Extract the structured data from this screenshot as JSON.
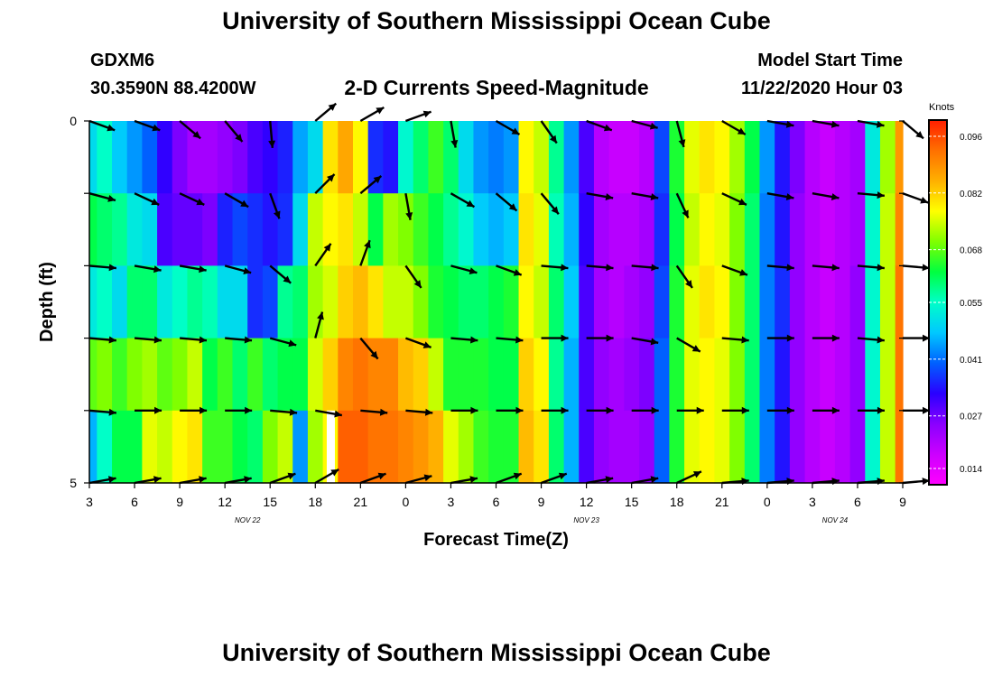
{
  "header": {
    "title": "University of Southern Mississippi Ocean Cube",
    "station_id": "GDXM6",
    "coordinates": "30.3590N 88.4200W",
    "subtitle": "2-D Currents Speed-Magnitude",
    "start_label": "Model Start Time",
    "start_value": "11/22/2020 Hour 03"
  },
  "footer": {
    "title": "University of Southern Mississippi Ocean Cube"
  },
  "colors": {
    "colormap": [
      "#ff00ff",
      "#cc00ff",
      "#8a00ff",
      "#2a00ff",
      "#0060ff",
      "#00c8ff",
      "#00ffc8",
      "#00ff40",
      "#80ff00",
      "#ffff00",
      "#ffb000",
      "#ff7000",
      "#ff1e00"
    ],
    "arrow": "#000000",
    "missing": "#ffffff"
  },
  "chart_data": {
    "type": "heatmap",
    "title": "2-D Currents Speed-Magnitude",
    "xlabel": "Forecast Time(Z)",
    "ylabel": "Depth (ft)",
    "x_tick_labels": [
      "3",
      "6",
      "9",
      "12",
      "15",
      "18",
      "21",
      "0",
      "3",
      "6",
      "9",
      "12",
      "15",
      "18",
      "21",
      "0",
      "3",
      "6",
      "9"
    ],
    "x_range_hours": [
      0,
      54
    ],
    "date_labels": [
      {
        "text": "NOV  22",
        "hour": 10.5
      },
      {
        "text": "NOV  23",
        "hour": 33
      },
      {
        "text": "NOV  24",
        "hour": 49.5
      }
    ],
    "y_tick_labels": [
      "0",
      "5"
    ],
    "ylim": [
      0,
      5
    ],
    "depth_levels": 5,
    "colorbar": {
      "title": "Knots",
      "min": 0.01,
      "max": 0.1,
      "tick_labels": [
        "0.096",
        "0.082",
        "0.068",
        "0.055",
        "0.041",
        "0.027",
        "0.014"
      ]
    },
    "speed_by_hour_depth": [
      [
        0.05,
        0.062,
        0.052,
        0.068,
        0.046
      ],
      [
        0.055,
        0.06,
        0.055,
        0.07,
        0.055
      ],
      [
        0.048,
        0.058,
        0.05,
        0.066,
        0.062
      ],
      [
        0.044,
        0.052,
        0.06,
        0.07,
        0.062
      ],
      [
        0.04,
        0.05,
        0.06,
        0.072,
        0.076
      ],
      [
        0.032,
        0.03,
        0.052,
        0.068,
        0.074
      ],
      [
        0.026,
        0.028,
        0.055,
        0.07,
        0.078
      ],
      [
        0.022,
        0.028,
        0.058,
        0.074,
        0.08
      ],
      [
        0.022,
        0.026,
        0.056,
        0.062,
        0.066
      ],
      [
        0.024,
        0.035,
        0.05,
        0.066,
        0.066
      ],
      [
        0.026,
        0.038,
        0.05,
        0.06,
        0.062
      ],
      [
        0.03,
        0.036,
        0.036,
        0.066,
        0.06
      ],
      [
        0.032,
        0.034,
        0.038,
        0.06,
        0.07
      ],
      [
        0.035,
        0.036,
        0.058,
        0.062,
        0.074
      ],
      [
        0.045,
        0.05,
        0.06,
        0.062,
        0.044
      ],
      [
        0.05,
        0.074,
        0.072,
        0.075,
        0.072
      ],
      [
        0.08,
        0.078,
        0.075,
        0.082,
        0.078
      ],
      [
        0.086,
        0.08,
        0.082,
        0.09,
        0.094
      ],
      [
        0.078,
        0.074,
        0.084,
        0.092,
        0.094
      ],
      [
        0.036,
        0.062,
        0.08,
        0.09,
        0.092
      ],
      [
        0.034,
        0.072,
        0.074,
        0.09,
        0.092
      ],
      [
        0.054,
        0.07,
        0.074,
        0.084,
        0.09
      ],
      [
        0.06,
        0.066,
        0.07,
        0.082,
        0.088
      ],
      [
        0.066,
        0.062,
        0.064,
        0.074,
        0.085
      ],
      [
        0.06,
        0.058,
        0.062,
        0.064,
        0.076
      ],
      [
        0.05,
        0.054,
        0.06,
        0.064,
        0.072
      ],
      [
        0.044,
        0.048,
        0.06,
        0.064,
        0.066
      ],
      [
        0.042,
        0.046,
        0.062,
        0.062,
        0.064
      ],
      [
        0.044,
        0.048,
        0.064,
        0.062,
        0.064
      ],
      [
        0.078,
        0.08,
        0.078,
        0.082,
        0.084
      ],
      [
        0.074,
        0.076,
        0.074,
        0.078,
        0.08
      ],
      [
        0.058,
        0.056,
        0.06,
        0.058,
        0.06
      ],
      [
        0.044,
        0.046,
        0.048,
        0.046,
        0.046
      ],
      [
        0.03,
        0.032,
        0.03,
        0.03,
        0.03
      ],
      [
        0.02,
        0.022,
        0.022,
        0.024,
        0.024
      ],
      [
        0.018,
        0.02,
        0.02,
        0.022,
        0.022
      ],
      [
        0.018,
        0.02,
        0.022,
        0.024,
        0.022
      ],
      [
        0.02,
        0.022,
        0.024,
        0.026,
        0.024
      ],
      [
        0.038,
        0.036,
        0.038,
        0.04,
        0.04
      ],
      [
        0.064,
        0.062,
        0.064,
        0.064,
        0.064
      ],
      [
        0.076,
        0.074,
        0.076,
        0.076,
        0.076
      ],
      [
        0.08,
        0.078,
        0.08,
        0.078,
        0.078
      ],
      [
        0.078,
        0.076,
        0.078,
        0.076,
        0.076
      ],
      [
        0.072,
        0.07,
        0.07,
        0.07,
        0.07
      ],
      [
        0.062,
        0.06,
        0.06,
        0.06,
        0.06
      ],
      [
        0.044,
        0.042,
        0.042,
        0.042,
        0.042
      ],
      [
        0.034,
        0.034,
        0.036,
        0.034,
        0.034
      ],
      [
        0.026,
        0.024,
        0.024,
        0.024,
        0.024
      ],
      [
        0.02,
        0.02,
        0.02,
        0.02,
        0.02
      ],
      [
        0.018,
        0.018,
        0.018,
        0.018,
        0.018
      ],
      [
        0.02,
        0.02,
        0.02,
        0.02,
        0.02
      ],
      [
        0.022,
        0.022,
        0.024,
        0.024,
        0.024
      ],
      [
        0.052,
        0.054,
        0.054,
        0.054,
        0.054
      ],
      [
        0.072,
        0.074,
        0.074,
        0.074,
        0.074
      ],
      [
        0.088,
        0.09,
        0.092,
        0.092,
        0.092
      ]
    ],
    "missing_cells": [
      {
        "hour": 16,
        "depth_index": 4
      }
    ],
    "current_arrows": {
      "hours": [
        0,
        3,
        6,
        9,
        12,
        15,
        18,
        21,
        24,
        27,
        30,
        33,
        36,
        39,
        42,
        45,
        48,
        51,
        54
      ],
      "angles_deg_by_depth": [
        [
          20,
          20,
          40,
          50,
          85,
          -40,
          -30,
          -20,
          80,
          30,
          55,
          20,
          15,
          75,
          30,
          10,
          10,
          10,
          40
        ],
        [
          15,
          25,
          25,
          30,
          70,
          -45,
          -40,
          80,
          30,
          40,
          50,
          10,
          10,
          65,
          25,
          10,
          10,
          5,
          20
        ],
        [
          5,
          10,
          10,
          15,
          40,
          -55,
          -70,
          55,
          15,
          20,
          5,
          5,
          5,
          55,
          20,
          5,
          5,
          5,
          5
        ],
        [
          5,
          5,
          5,
          5,
          15,
          -75,
          50,
          20,
          5,
          5,
          0,
          0,
          10,
          30,
          5,
          0,
          0,
          5,
          0
        ],
        [
          5,
          0,
          0,
          0,
          5,
          10,
          5,
          5,
          0,
          0,
          0,
          0,
          0,
          0,
          0,
          0,
          0,
          0,
          0
        ],
        [
          -10,
          -10,
          -10,
          -10,
          -20,
          -30,
          -20,
          -15,
          -10,
          -20,
          -20,
          -10,
          -10,
          -25,
          -5,
          -5,
          -5,
          -5,
          -5
        ]
      ]
    }
  }
}
